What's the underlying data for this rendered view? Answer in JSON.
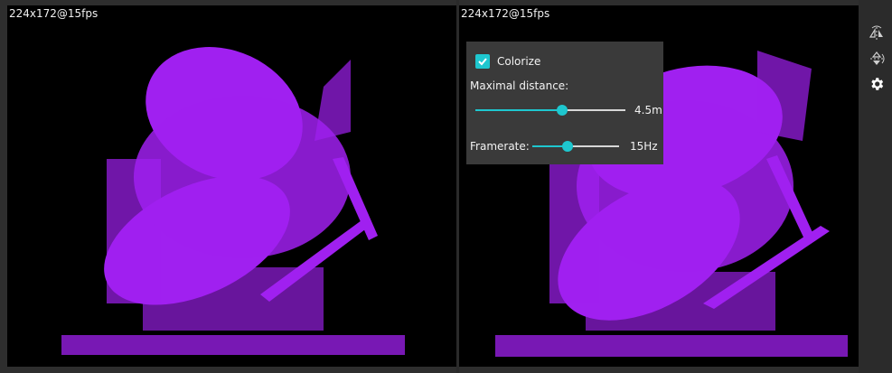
{
  "views": [
    {
      "resolution_label": "224x172@15fps"
    },
    {
      "resolution_label": "224x172@15fps"
    }
  ],
  "settings": {
    "colorize_label": "Colorize",
    "colorize_checked": true,
    "max_distance_label": "Maximal distance:",
    "max_distance_value": "4.5m",
    "max_distance_fraction": 0.58,
    "framerate_label": "Framerate:",
    "framerate_value": "15Hz",
    "framerate_fraction": 0.4
  },
  "toolbar": {
    "icons": [
      "flip-horizontal-icon",
      "flip-vertical-icon",
      "gear-icon"
    ]
  },
  "colors": {
    "point_cloud": "#a020f0",
    "accent": "#1ec7cf",
    "background": "#000000"
  }
}
